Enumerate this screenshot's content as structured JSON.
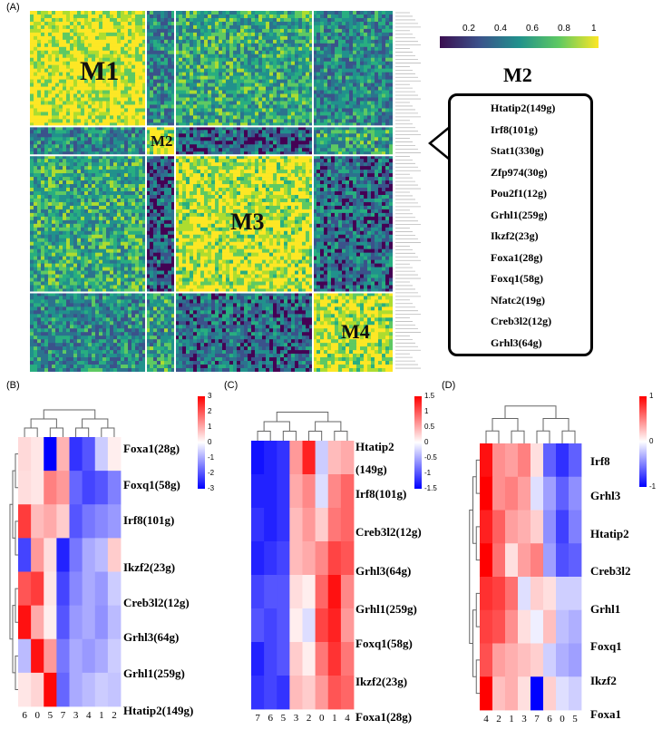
{
  "panels": {
    "a": "(A)",
    "b": "(B)",
    "c": "(C)",
    "d": "(D)"
  },
  "panel_a": {
    "modules": [
      "M1",
      "M2",
      "M3",
      "M4"
    ],
    "colorbar_ticks": [
      "0.2",
      "0.4",
      "0.6",
      "0.8",
      "1"
    ],
    "m2_title": "M2",
    "m2_genes": [
      "Htatip2(149g)",
      "Irf8(101g)",
      "Stat1(330g)",
      "Zfp974(30g)",
      "Pou2f1(12g)",
      "Grhl1(259g)",
      "Ikzf2(23g)",
      "Foxa1(28g)",
      "Foxq1(58g)",
      "Nfatc2(19g)",
      "Creb3l2(12g)",
      "Grhl3(64g)"
    ]
  },
  "panel_b": {
    "rows": [
      "Foxa1(28g)",
      "Foxq1(58g)",
      "Irf8(101g)",
      "Ikzf2(23g)",
      "Creb3l2(12g)",
      "Grhl3(64g)",
      "Grhl1(259g)",
      "Htatip2(149g)"
    ],
    "cols": [
      "6",
      "0",
      "5",
      "7",
      "3",
      "4",
      "1",
      "2"
    ],
    "legend_ticks": [
      "3",
      "2",
      "1",
      "0",
      "-1",
      "-2",
      "-3"
    ]
  },
  "panel_c": {
    "rows": [
      "Htatip2",
      "(149g)",
      "Irf8(101g)",
      "Creb3l2(12g)",
      "Grhl3(64g)",
      "Grhl1(259g)",
      "Foxq1(58g)",
      "Ikzf2(23g)",
      "Foxa1(28g)"
    ],
    "cols": [
      "7",
      "6",
      "5",
      "3",
      "2",
      "0",
      "1",
      "4"
    ],
    "legend_ticks": [
      "1.5",
      "1",
      "0.5",
      "0",
      "-0.5",
      "-1",
      "-1.5"
    ]
  },
  "panel_d": {
    "rows": [
      "Irf8",
      "Grhl3",
      "Htatip2",
      "Creb3l2",
      "Grhl1",
      "Foxq1",
      "Ikzf2",
      "Foxa1"
    ],
    "cols": [
      "4",
      "2",
      "1",
      "3",
      "7",
      "6",
      "0",
      "5"
    ],
    "legend_ticks": [
      "1",
      "0",
      "-1"
    ]
  },
  "heatmaps": {
    "b": [
      [
        0.45,
        0.3,
        -3.0,
        0.9,
        -2.4,
        -2.0,
        -0.6,
        0.2
      ],
      [
        0.4,
        0.3,
        1.5,
        1.2,
        -1.8,
        -2.2,
        -2.0,
        -1.5
      ],
      [
        2.3,
        0.8,
        1.0,
        0.6,
        -2.0,
        -1.6,
        -1.4,
        -1.2
      ],
      [
        -2.2,
        1.2,
        0.4,
        -2.6,
        -1.6,
        -1.0,
        -0.8,
        0.6
      ],
      [
        2.0,
        2.3,
        0.3,
        -2.2,
        -1.4,
        -1.0,
        -1.2,
        -0.6
      ],
      [
        2.8,
        1.0,
        0.2,
        -2.0,
        -1.2,
        -1.0,
        -1.3,
        -0.8
      ],
      [
        -0.8,
        2.8,
        1.2,
        -1.6,
        -1.0,
        -1.2,
        -1.0,
        -0.6
      ],
      [
        0.3,
        0.5,
        2.9,
        -1.8,
        -1.0,
        -0.8,
        -0.6,
        -0.7
      ]
    ],
    "c": [
      [
        -1.4,
        -1.3,
        -1.2,
        0.6,
        1.3,
        -0.3,
        0.4,
        0.5
      ],
      [
        -1.3,
        -1.3,
        -1.2,
        0.5,
        0.7,
        -0.2,
        0.7,
        0.9
      ],
      [
        -1.2,
        -1.3,
        -1.2,
        0.4,
        0.6,
        0.3,
        0.8,
        0.9
      ],
      [
        -1.3,
        -1.2,
        -1.1,
        0.4,
        0.5,
        0.7,
        1.1,
        1.0
      ],
      [
        -1.1,
        -1.0,
        -1.0,
        0.2,
        0.1,
        0.9,
        1.4,
        0.7
      ],
      [
        -1.0,
        -1.1,
        -1.0,
        0.1,
        -0.2,
        1.1,
        1.3,
        0.6
      ],
      [
        -1.3,
        -1.1,
        -1.0,
        0.3,
        0.1,
        0.8,
        1.2,
        0.8
      ],
      [
        -1.2,
        -1.1,
        -1.2,
        0.4,
        0.3,
        0.6,
        1.0,
        0.9
      ]
    ],
    "d": [
      [
        1.5,
        0.7,
        0.6,
        0.8,
        0.2,
        -1.0,
        -1.3,
        -1.0
      ],
      [
        1.6,
        0.7,
        0.8,
        0.6,
        -0.2,
        -0.6,
        -1.0,
        -0.7
      ],
      [
        1.4,
        1.0,
        0.6,
        0.5,
        0.3,
        -0.7,
        -1.2,
        -0.8
      ],
      [
        1.6,
        0.9,
        0.2,
        0.6,
        0.8,
        -0.6,
        -1.1,
        -1.0
      ],
      [
        1.3,
        1.2,
        0.9,
        -0.2,
        0.3,
        0.2,
        -0.3,
        -0.3
      ],
      [
        1.2,
        1.1,
        0.7,
        0.2,
        -0.1,
        0.4,
        -0.4,
        -0.5
      ],
      [
        1.1,
        0.6,
        0.5,
        0.4,
        0.3,
        -0.3,
        -0.5,
        -0.6
      ],
      [
        1.6,
        0.4,
        0.5,
        0.2,
        -1.6,
        0.3,
        -0.2,
        -0.3
      ]
    ]
  },
  "colors": {
    "viridis_dark": "#440154",
    "viridis_mid": "#21918c",
    "viridis_light": "#fde725",
    "heat_red": "#ff0000",
    "heat_blue": "#0000ff"
  }
}
